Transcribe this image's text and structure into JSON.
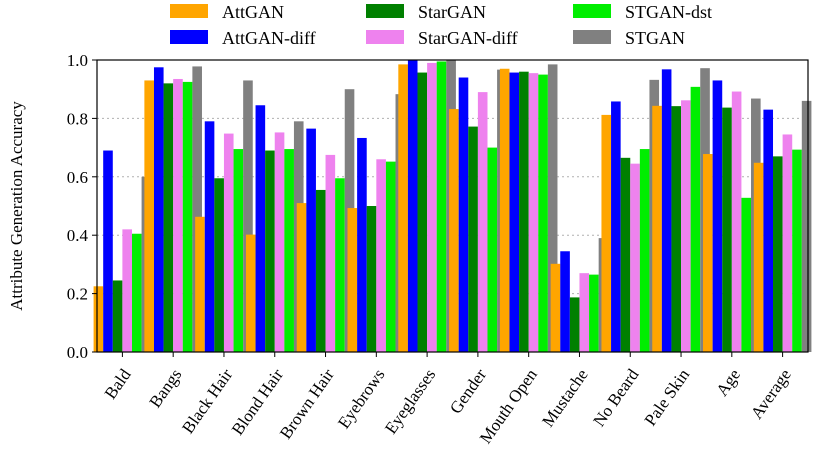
{
  "chart_data": {
    "type": "bar",
    "title": "",
    "xlabel": "",
    "ylabel": "Attribute Generation Accuracy",
    "ylim": [
      0,
      1.0
    ],
    "yticks": [
      "0.0",
      "0.2",
      "0.4",
      "0.6",
      "0.8",
      "1.0"
    ],
    "grid": "horizontal dotted",
    "legend_placement": "top",
    "categories": [
      "Bald",
      "Bangs",
      "Black Hair",
      "Blond Hair",
      "Brown Hair",
      "Eyebrows",
      "Eyeglasses",
      "Gender",
      "Mouth Open",
      "Mustache",
      "No Beard",
      "Pale Skin",
      "Age",
      "Average"
    ],
    "series": [
      {
        "name": "AttGAN",
        "color": "#FFA500",
        "values": [
          0.225,
          0.93,
          0.463,
          0.402,
          0.51,
          0.493,
          0.985,
          0.832,
          0.97,
          0.302,
          0.812,
          0.843,
          0.678,
          0.648
        ]
      },
      {
        "name": "AttGAN-diff",
        "color": "#0000FF",
        "values": [
          0.69,
          0.975,
          0.79,
          0.845,
          0.765,
          0.733,
          1.0,
          0.94,
          0.957,
          0.345,
          0.858,
          0.968,
          0.93,
          0.83
        ]
      },
      {
        "name": "StarGAN",
        "color": "#008000",
        "values": [
          0.245,
          0.92,
          0.595,
          0.69,
          0.555,
          0.5,
          0.957,
          0.772,
          0.96,
          0.187,
          0.665,
          0.842,
          0.837,
          0.67
        ]
      },
      {
        "name": "StarGAN-diff",
        "color": "#EE82EE",
        "values": [
          0.42,
          0.935,
          0.748,
          0.752,
          0.675,
          0.66,
          0.99,
          0.89,
          0.955,
          0.27,
          0.645,
          0.862,
          0.892,
          0.745
        ]
      },
      {
        "name": "STGAN-dst",
        "color": "#00EE00",
        "values": [
          0.405,
          0.925,
          0.695,
          0.695,
          0.595,
          0.652,
          0.995,
          0.7,
          0.95,
          0.265,
          0.695,
          0.908,
          0.528,
          0.693
        ]
      },
      {
        "name": "STGAN",
        "color": "#808080",
        "values": [
          0.6,
          0.978,
          0.93,
          0.79,
          0.9,
          0.883,
          1.0,
          0.967,
          0.985,
          0.39,
          0.932,
          0.972,
          0.868,
          0.86
        ]
      }
    ]
  }
}
